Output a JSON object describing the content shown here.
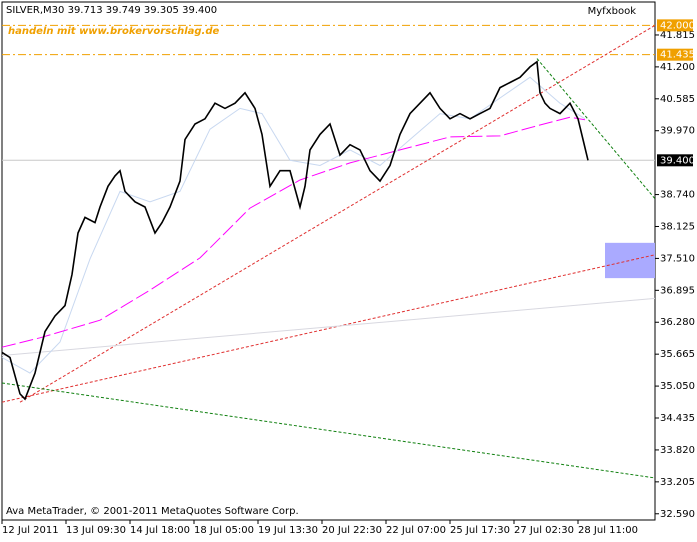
{
  "chart_data": {
    "type": "line",
    "title": "SILVER,M30  39.713 39.749 39.305 39.400",
    "watermark": "Myfxbook",
    "annotation": "handeln mit www.brokervorschlag.de",
    "copyright": "Ava MetaTrader, © 2001-2011 MetaQuotes Software Corp.",
    "xlim": [
      0,
      653
    ],
    "ylim": [
      32.47,
      42.45
    ],
    "xticks": [
      {
        "value": 0,
        "label": "12 Jul 2011"
      },
      {
        "value": 64,
        "label": "13 Jul 09:30"
      },
      {
        "value": 128,
        "label": "14 Jul 18:00"
      },
      {
        "value": 192,
        "label": "18 Jul 05:00"
      },
      {
        "value": 256,
        "label": "19 Jul 13:30"
      },
      {
        "value": 320,
        "label": "20 Jul 22:30"
      },
      {
        "value": 384,
        "label": "22 Jul 07:00"
      },
      {
        "value": 448,
        "label": "25 Jul 17:30"
      },
      {
        "value": 512,
        "label": "27 Jul 02:30"
      },
      {
        "value": 576,
        "label": "28 Jul 11:00"
      }
    ],
    "yticks": [
      41.815,
      {
        "value": 41.2,
        "label": "41.200"
      },
      40.585,
      {
        "value": 39.97,
        "label": "39.970"
      },
      {
        "value": 38.74,
        "label": "38.740"
      },
      38.125,
      {
        "value": 37.51,
        "label": "37.510"
      },
      36.895,
      {
        "value": 36.28,
        "label": "36.280"
      },
      35.665,
      {
        "value": 35.05,
        "label": "35.050"
      },
      34.435,
      {
        "value": 33.82,
        "label": "33.820"
      },
      33.205,
      {
        "value": 32.59,
        "label": "32.590"
      }
    ],
    "series": [
      {
        "color": "#c8d8f0",
        "x": [
          0,
          28,
          58,
          88,
          118,
          148,
          178,
          208,
          238,
          260,
          288,
          318,
          348,
          378,
          408,
          438,
          468,
          498,
          528,
          558,
          583
        ],
        "values": [
          35.6,
          35.3,
          35.9,
          37.5,
          38.8,
          38.6,
          38.8,
          40.0,
          40.4,
          40.3,
          39.4,
          39.3,
          39.6,
          39.3,
          39.8,
          40.3,
          40.2,
          40.6,
          41.0,
          40.5,
          40.2
        ]
      },
      {
        "color": "#ff00ff",
        "x": [
          0,
          38,
          98,
          148,
          198,
          248,
          298,
          348,
          398,
          448,
          498,
          538,
          568,
          583
        ],
        "values": [
          35.8,
          35.98,
          36.32,
          36.9,
          37.52,
          38.48,
          39.02,
          39.35,
          39.6,
          39.85,
          39.87,
          40.08,
          40.23,
          40.18
        ]
      },
      {
        "color": "#000000",
        "x": [
          0,
          8,
          18,
          23,
          33,
          43,
          53,
          63,
          70,
          76,
          83,
          93,
          98,
          106,
          113,
          118,
          123,
          133,
          143,
          153,
          160,
          168,
          178,
          183,
          193,
          203,
          213,
          223,
          233,
          243,
          253,
          260,
          268,
          278,
          288,
          298,
          303,
          308,
          318,
          328,
          338,
          348,
          358,
          368,
          378,
          388,
          398,
          408,
          418,
          428,
          438,
          448,
          458,
          468,
          478,
          488,
          498,
          508,
          518,
          528,
          535,
          538,
          543,
          548,
          558,
          568,
          576,
          581,
          586
        ],
        "values": [
          35.7,
          35.6,
          34.9,
          34.8,
          35.3,
          36.1,
          36.4,
          36.6,
          37.2,
          38.0,
          38.3,
          38.2,
          38.5,
          38.9,
          39.1,
          39.2,
          38.8,
          38.6,
          38.5,
          38.0,
          38.2,
          38.5,
          39.0,
          39.8,
          40.1,
          40.2,
          40.5,
          40.4,
          40.5,
          40.7,
          40.4,
          39.9,
          38.9,
          39.2,
          39.2,
          38.5,
          38.9,
          39.6,
          39.9,
          40.1,
          39.5,
          39.7,
          39.6,
          39.2,
          39.0,
          39.3,
          39.9,
          40.3,
          40.5,
          40.7,
          40.4,
          40.2,
          40.3,
          40.2,
          40.3,
          40.4,
          40.8,
          40.9,
          41.0,
          41.2,
          41.3,
          40.7,
          40.5,
          40.4,
          40.3,
          40.5,
          40.2,
          39.8,
          39.4
        ]
      }
    ],
    "trendlines": [
      {
        "color": "#e03030",
        "x": [
          18,
          653
        ],
        "values": [
          34.74,
          42.0
        ]
      },
      {
        "color": "#e03030",
        "x": [
          0,
          653
        ],
        "values": [
          34.74,
          37.58
        ]
      },
      {
        "color": "#108010",
        "x": [
          0,
          653
        ],
        "values": [
          35.11,
          33.28
        ]
      },
      {
        "color": "#108010",
        "x": [
          535,
          653
        ],
        "values": [
          41.36,
          38.66
        ]
      },
      {
        "color": "#d8d8e0",
        "x": [
          0,
          653
        ],
        "values": [
          35.64,
          36.74
        ]
      }
    ],
    "zone": {
      "color": "#aaaaff",
      "x": [
        603,
        653
      ],
      "values": [
        37.81,
        37.13
      ]
    },
    "levels": [
      {
        "value": 42,
        "label": "42.000",
        "color": "#f0a000",
        "text_color": "#ffffff"
      },
      {
        "value": 41.435,
        "label": "41.435",
        "color": "#f0a000",
        "text_color": "#ffffff"
      },
      {
        "value": 39.4,
        "label": "39.400",
        "color": "#000000",
        "text_color": "#ffffff"
      }
    ]
  }
}
